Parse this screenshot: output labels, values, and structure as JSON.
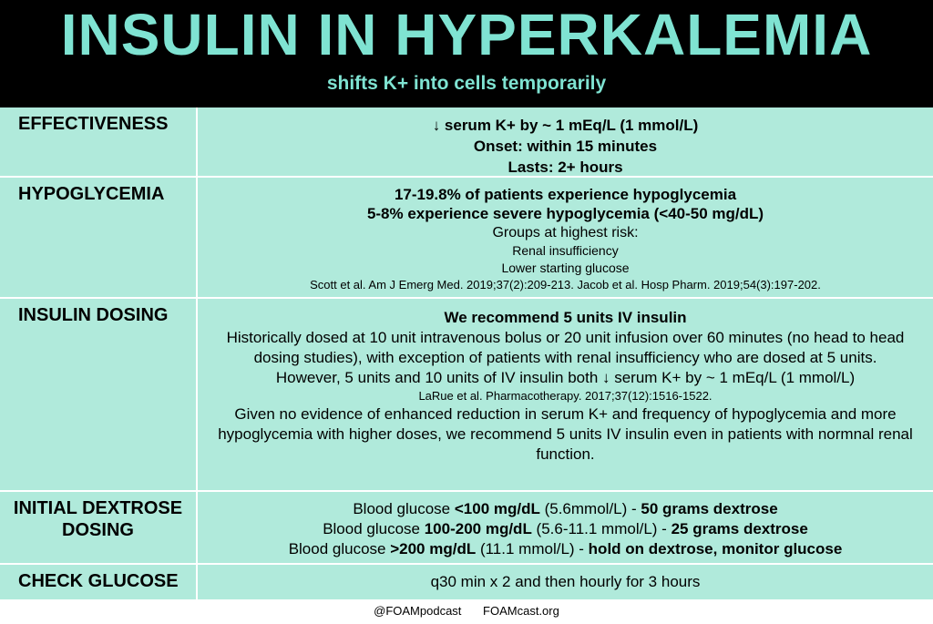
{
  "header": {
    "title": "INSULIN IN HYPERKALEMIA",
    "subtitle": "shifts K+ into cells temporarily"
  },
  "rows": [
    {
      "label": "EFFECTIVENESS",
      "lines": [
        "↓ serum K+ by ~ 1 mEq/L (1 mmol/L)",
        "Onset: within 15 minutes",
        "Lasts: 2+ hours"
      ]
    },
    {
      "label": "HYPOGLYCEMIA",
      "lines": [
        "17-19.8% of patients experience hypoglycemia",
        "5-8% experience severe hypoglycemia (<40-50 mg/dL)",
        "Groups at highest risk:",
        "Renal insufficiency",
        "Lower starting glucose",
        "Scott et al. Am J Emerg Med. 2019;37(2):209-213. Jacob et al. Hosp Pharm. 2019;54(3):197-202."
      ]
    },
    {
      "label": "INSULIN DOSING",
      "lines": [
        "We recommend 5 units IV insulin",
        "Historically dosed at 10 unit intravenous bolus or 20 unit infusion over 60 minutes (no head to head dosing studies), with exception of patients with renal insufficiency who are dosed at 5 units.",
        "However, 5 units and 10 units of IV insulin both ↓ serum K+ by ~ 1 mEq/L (1 mmol/L)",
        "LaRue et al. Pharmacotherapy. 2017;37(12):1516-1522.",
        "Given no evidence of enhanced reduction in serum K+ and frequency of hypoglycemia and more hypoglycemia with higher doses, we recommend 5 units IV insulin even in patients with normnal renal function."
      ]
    },
    {
      "label": "INITIAL DEXTROSE DOSING",
      "lines": [
        [
          "Blood glucose ",
          "<100 mg/dL",
          " (5.6mmol/L) - ",
          "50 grams dextrose"
        ],
        [
          "Blood glucose ",
          "100-200 mg/dL",
          " (5.6-11.1 mmol/L) - ",
          "25 grams dextrose"
        ],
        [
          "Blood glucose ",
          ">200 mg/dL",
          " (11.1 mmol/L) - ",
          "hold on dextrose, monitor glucose"
        ]
      ]
    },
    {
      "label": "CHECK GLUCOSE",
      "lines": [
        "q30 min x 2 and then hourly for 3 hours"
      ]
    }
  ],
  "footer": {
    "twitter": "@FOAMpodcast",
    "site": "FOAMcast.org"
  },
  "colors": {
    "header_bg": "#000000",
    "accent": "#7fe3d2",
    "cell_bg": "#b0eadb"
  }
}
